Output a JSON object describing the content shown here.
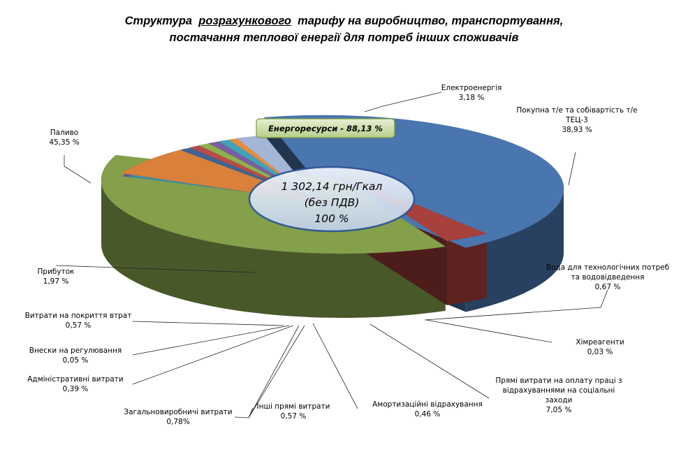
{
  "title": {
    "line1_part1": "Структура",
    "line1_underlined": "розрахункового",
    "line1_part2": "тарифу на виробництво, транспортування,",
    "line2": "постачання теплової енергії для потреб інших споживачів"
  },
  "callouts": {
    "energy": "Енергоресурси  -  88,13 %",
    "center_line1": "1 302,14 грн/Гкал",
    "center_line2": "(без ПДВ)",
    "center_line3": "100 %"
  },
  "chart_data": {
    "type": "pie",
    "style": "3d-exploded",
    "unit": "%",
    "slices": [
      {
        "label": "Паливо",
        "value": 45.35,
        "value_text": "45,35 %",
        "color": "#4A76B0"
      },
      {
        "label": "Електроенергія",
        "value": 3.18,
        "value_text": "3,18 %",
        "color": "#A8403C"
      },
      {
        "label": "Покупна т/е та собівартість т/е ТЕЦ-3",
        "value": 38.93,
        "value_text": "38,93 %",
        "color": "#84A04A"
      },
      {
        "label": "Вода для технологічних потреб та водовідведення",
        "value": 0.67,
        "value_text": "0,67 %",
        "color": "#6E5495"
      },
      {
        "label": "Хімреагенти",
        "value": 0.03,
        "value_text": "0,03 %",
        "color": "#3B8EA5"
      },
      {
        "label": "Прямі витрати на оплату праці з відрахуваннями на соціальні заходи",
        "value": 7.05,
        "value_text": "7,05 %",
        "color": "#D9813A"
      },
      {
        "label": "Амортизаційні відрахування",
        "value": 0.46,
        "value_text": "0,46 %",
        "color": "#3E6496"
      },
      {
        "label": "Інші прямі витрати",
        "value": 0.57,
        "value_text": "0,57 %",
        "color": "#B84B45"
      },
      {
        "label": "Загальновиробничі витрати",
        "value": 0.78,
        "value_text": "0,78%",
        "color": "#8FB04F"
      },
      {
        "label": "Адміністративні витрати",
        "value": 0.39,
        "value_text": "0,39 %",
        "color": "#7A5EA0"
      },
      {
        "label": "Внески на регулювання",
        "value": 0.05,
        "value_text": "0,05 %",
        "color": "#40A3BA"
      },
      {
        "label": "Витрати на покриття втрат",
        "value": 0.57,
        "value_text": "0,57 %",
        "color": "#E68B3F"
      },
      {
        "label": "Прибуток",
        "value": 1.97,
        "value_text": "1,97 %",
        "color": "#A5B5D6"
      }
    ]
  }
}
